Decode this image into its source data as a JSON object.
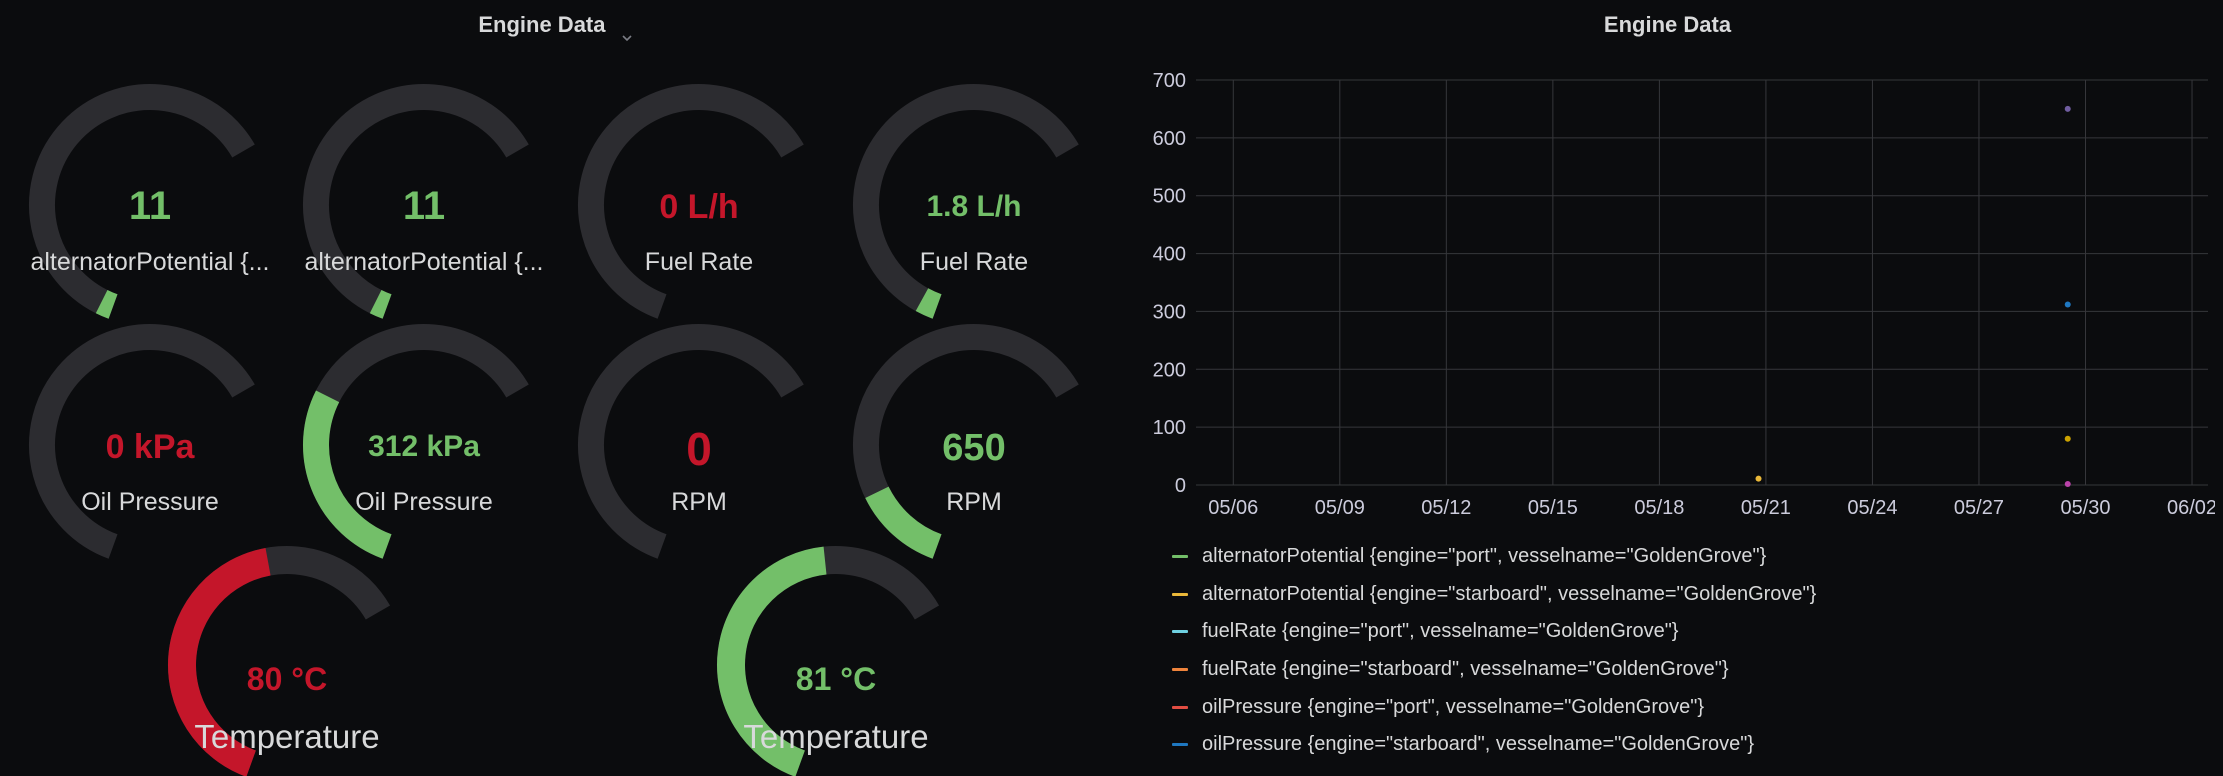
{
  "colors": {
    "green": "#73bf69",
    "red": "#c4162a",
    "track": "#2c2c30",
    "grid": "#36373b",
    "text": "#ccccdc"
  },
  "left_panel": {
    "title": "Engine Data",
    "gauges": [
      {
        "value_text": "11",
        "label": "alternatorPotential {...",
        "fill": 0.03,
        "color": "#73bf69"
      },
      {
        "value_text": "11",
        "label": "alternatorPotential {...",
        "fill": 0.03,
        "color": "#73bf69"
      },
      {
        "value_text": "0 L/h",
        "label": "Fuel Rate",
        "fill": 0.0,
        "color": "#c4162a"
      },
      {
        "value_text": "1.8 L/h",
        "label": "Fuel Rate",
        "fill": 0.04,
        "color": "#73bf69"
      },
      {
        "value_text": "0 kPa",
        "label": "Oil Pressure",
        "fill": 0.0,
        "color": "#c4162a"
      },
      {
        "value_text": "312 kPa",
        "label": "Oil Pressure",
        "fill": 0.44,
        "color": "#73bf69"
      },
      {
        "value_text": "0",
        "label": "RPM",
        "fill": 0.0,
        "color": "#c4162a"
      },
      {
        "value_text": "650",
        "label": "RPM",
        "fill": 0.2,
        "color": "#73bf69"
      },
      {
        "value_text": "80 °C",
        "label": "Temperature",
        "fill": 0.68,
        "color": "#c4162a"
      },
      {
        "value_text": "81 °C",
        "label": "Temperature",
        "fill": 0.7,
        "color": "#73bf69"
      }
    ]
  },
  "right_panel": {
    "title": "Engine Data",
    "chart_data": {
      "type": "scatter",
      "title": "Engine Data",
      "xlabel": "",
      "ylabel": "",
      "x_ticks": [
        "05/06",
        "05/09",
        "05/12",
        "05/15",
        "05/18",
        "05/21",
        "05/24",
        "05/27",
        "05/30",
        "06/02"
      ],
      "y_ticks": [
        "0",
        "100",
        "200",
        "300",
        "400",
        "500",
        "600",
        "700"
      ],
      "xlim": [
        "05/05",
        "06/02"
      ],
      "ylim": [
        0,
        700
      ],
      "grid": true,
      "legend_position": "bottom",
      "points": [
        {
          "x": "05/20 19:00",
          "y": 11,
          "color": "#eab839"
        },
        {
          "x": "05/29 12:00",
          "y": 650,
          "color": "#705da0"
        },
        {
          "x": "05/29 12:00",
          "y": 312,
          "color": "#1f78c1"
        },
        {
          "x": "05/29 12:00",
          "y": 80,
          "color": "#cca300"
        },
        {
          "x": "05/29 12:00",
          "y": 1.8,
          "color": "#ba43a9"
        }
      ],
      "series": [
        {
          "name": "alternatorPotential {engine=\"port\", vesselname=\"GoldenGrove\"}",
          "color": "#73bf69"
        },
        {
          "name": "alternatorPotential {engine=\"starboard\", vesselname=\"GoldenGrove\"}",
          "color": "#eab839"
        },
        {
          "name": "fuelRate {engine=\"port\", vesselname=\"GoldenGrove\"}",
          "color": "#6ed0e0"
        },
        {
          "name": "fuelRate {engine=\"starboard\", vesselname=\"GoldenGrove\"}",
          "color": "#ef843c"
        },
        {
          "name": "oilPressure {engine=\"port\", vesselname=\"GoldenGrove\"}",
          "color": "#e24d42"
        },
        {
          "name": "oilPressure {engine=\"starboard\", vesselname=\"GoldenGrove\"}",
          "color": "#1f78c1"
        }
      ]
    }
  }
}
